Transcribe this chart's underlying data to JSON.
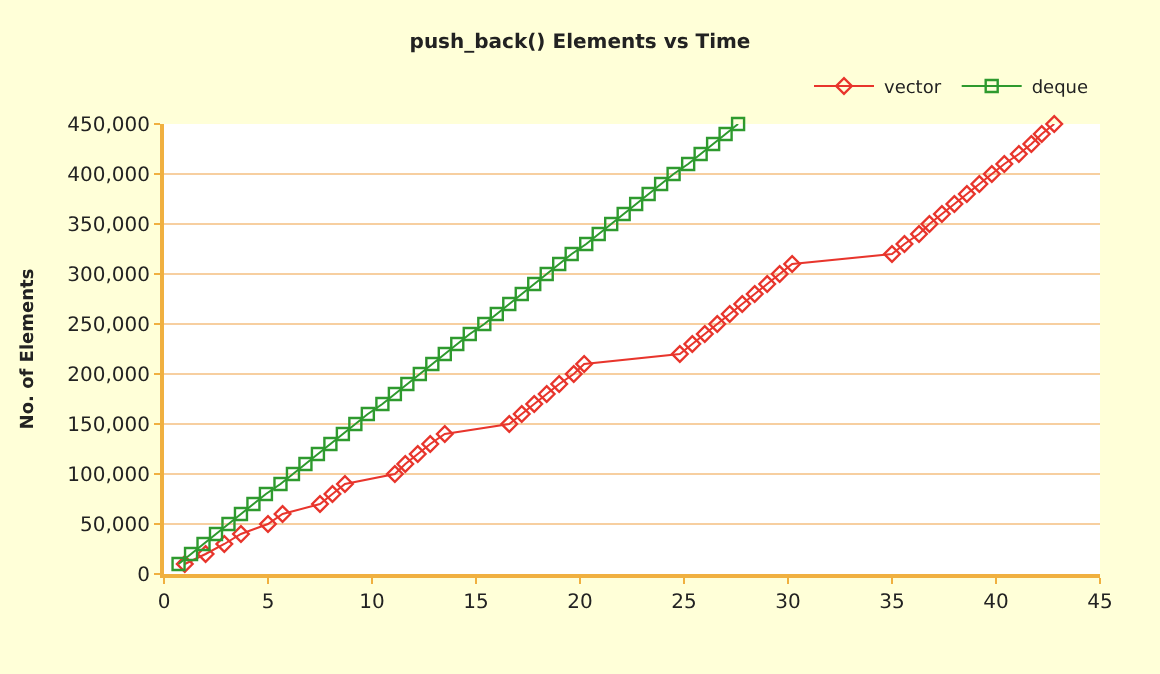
{
  "chart_data": {
    "type": "line",
    "title": "push_back() Elements vs Time",
    "ylabel": "No. of Elements",
    "xlim": [
      0,
      45
    ],
    "xticks": [
      0,
      5,
      10,
      15,
      20,
      25,
      30,
      35,
      40,
      45
    ],
    "ylim": [
      0,
      450000
    ],
    "yticks": [
      {
        "value": 0,
        "label": "0"
      },
      {
        "value": 50000,
        "label": "50,000"
      },
      {
        "value": 100000,
        "label": "100,000"
      },
      {
        "value": 150000,
        "label": "150,000"
      },
      {
        "value": 200000,
        "label": "200,000"
      },
      {
        "value": 250000,
        "label": "250,000"
      },
      {
        "value": 300000,
        "label": "300,000"
      },
      {
        "value": 350000,
        "label": "350,000"
      },
      {
        "value": 400000,
        "label": "400,000"
      },
      {
        "value": 450000,
        "label": "450,000"
      }
    ],
    "grid": "y",
    "legend": "top right",
    "series": [
      {
        "name": "vector",
        "color": "#e8352c",
        "marker": "diamond",
        "x": [
          1.0,
          2.0,
          2.9,
          3.7,
          5.0,
          5.7,
          7.5,
          8.1,
          8.7,
          11.1,
          11.6,
          12.2,
          12.8,
          13.5,
          16.6,
          17.2,
          17.8,
          18.4,
          19.0,
          19.7,
          20.2,
          24.8,
          25.4,
          26.0,
          26.6,
          27.2,
          27.8,
          28.4,
          29.0,
          29.6,
          30.2,
          35.0,
          35.6,
          36.3,
          36.8,
          37.4,
          38.0,
          38.6,
          39.2,
          39.8,
          40.4,
          41.1,
          41.7,
          42.2,
          42.8
        ],
        "values": [
          10000,
          20000,
          30000,
          40000,
          50000,
          60000,
          70000,
          80000,
          90000,
          100000,
          110000,
          120000,
          130000,
          140000,
          150000,
          160000,
          170000,
          180000,
          190000,
          200000,
          210000,
          220000,
          230000,
          240000,
          250000,
          260000,
          270000,
          280000,
          290000,
          300000,
          310000,
          320000,
          330000,
          340000,
          350000,
          360000,
          370000,
          380000,
          390000,
          400000,
          410000,
          420000,
          430000,
          440000,
          450000
        ]
      },
      {
        "name": "deque",
        "color": "#2e9a2e",
        "marker": "square",
        "x": [
          0.7,
          1.3,
          1.9,
          2.5,
          3.1,
          3.7,
          4.3,
          4.9,
          5.6,
          6.2,
          6.8,
          7.4,
          8.0,
          8.6,
          9.2,
          9.8,
          10.5,
          11.1,
          11.7,
          12.3,
          12.9,
          13.5,
          14.1,
          14.7,
          15.4,
          16.0,
          16.6,
          17.2,
          17.8,
          18.4,
          19.0,
          19.6,
          20.3,
          20.9,
          21.5,
          22.1,
          22.7,
          23.3,
          23.9,
          24.5,
          25.2,
          25.8,
          26.4,
          27.0,
          27.6
        ],
        "values": [
          10000,
          20000,
          30000,
          40000,
          50000,
          60000,
          70000,
          80000,
          90000,
          100000,
          110000,
          120000,
          130000,
          140000,
          150000,
          160000,
          170000,
          180000,
          190000,
          200000,
          210000,
          220000,
          230000,
          240000,
          250000,
          260000,
          270000,
          280000,
          290000,
          300000,
          310000,
          320000,
          330000,
          340000,
          350000,
          360000,
          370000,
          380000,
          390000,
          400000,
          410000,
          420000,
          430000,
          440000,
          450000
        ]
      }
    ]
  }
}
